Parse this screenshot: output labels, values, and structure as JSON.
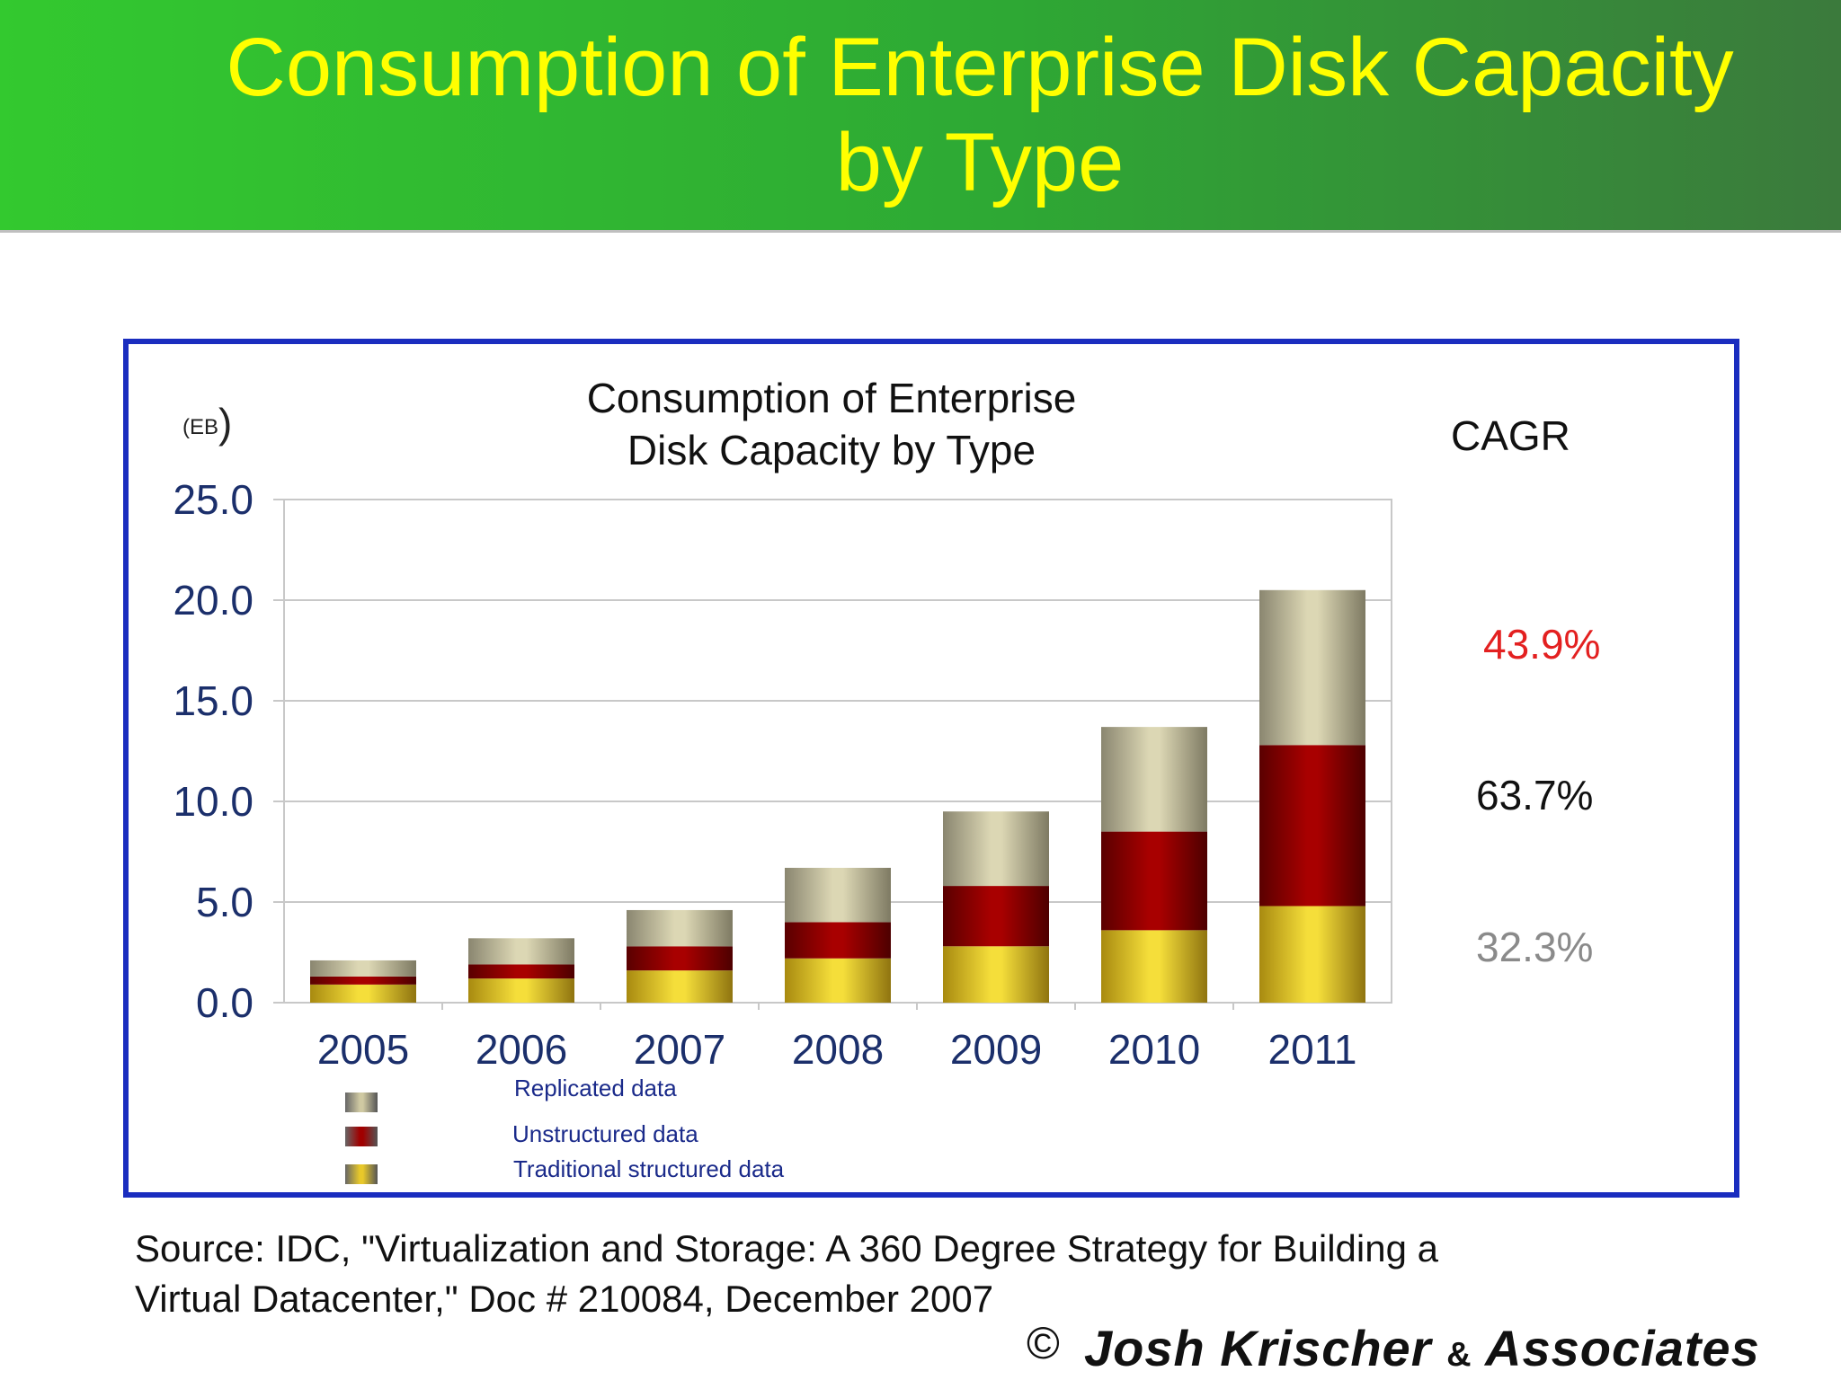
{
  "header": {
    "title_line1": "Consumption of Enterprise Disk Capacity",
    "title_line2": "by Type"
  },
  "chart_data": {
    "type": "bar",
    "stacked": true,
    "title_line1": "Consumption of Enterprise",
    "title_line2": "Disk Capacity by Type",
    "unit": "(EB",
    "unit_paren": ")",
    "categories": [
      "2005",
      "2006",
      "2007",
      "2008",
      "2009",
      "2010",
      "2011"
    ],
    "y_ticks": [
      "25.0",
      "20.0",
      "15.0",
      "10.0",
      "5.0",
      "0.0"
    ],
    "ylim": [
      0,
      25
    ],
    "grid": true,
    "legend_position": "bottom-left",
    "series": [
      {
        "name": "Traditional structured data",
        "values": [
          0.9,
          1.2,
          1.6,
          2.2,
          2.8,
          3.6,
          4.8
        ],
        "color": "#e8c82a"
      },
      {
        "name": "Unstructured data",
        "values": [
          0.4,
          0.7,
          1.2,
          1.8,
          3.0,
          4.9,
          8.0
        ],
        "color": "#a00000"
      },
      {
        "name": "Replicated data",
        "values": [
          0.8,
          1.3,
          1.8,
          2.7,
          3.7,
          5.2,
          7.7
        ],
        "color": "#d2cda8"
      }
    ],
    "cagr_label": "CAGR",
    "cagr": [
      {
        "value": "43.9%",
        "color": "#e32020"
      },
      {
        "value": "63.7%",
        "color": "#111111"
      },
      {
        "value": "32.3%",
        "color": "#8a8a8a"
      }
    ]
  },
  "legend": [
    {
      "label": "Replicated data",
      "color": "#cfc9a2"
    },
    {
      "label": "Unstructured data",
      "color": "#a00000"
    },
    {
      "label": "Traditional structured data",
      "color": "#e8c82a"
    }
  ],
  "source": {
    "line1": "Source: IDC, \"Virtualization and Storage: A 360 Degree Strategy for Building a",
    "line2": "Virtual Datacenter,\" Doc # 210084, December 2007"
  },
  "footer": {
    "copyright": "©",
    "brand_name": "Josh Krischer",
    "brand_amp": "&",
    "brand_suffix": "Associates"
  }
}
